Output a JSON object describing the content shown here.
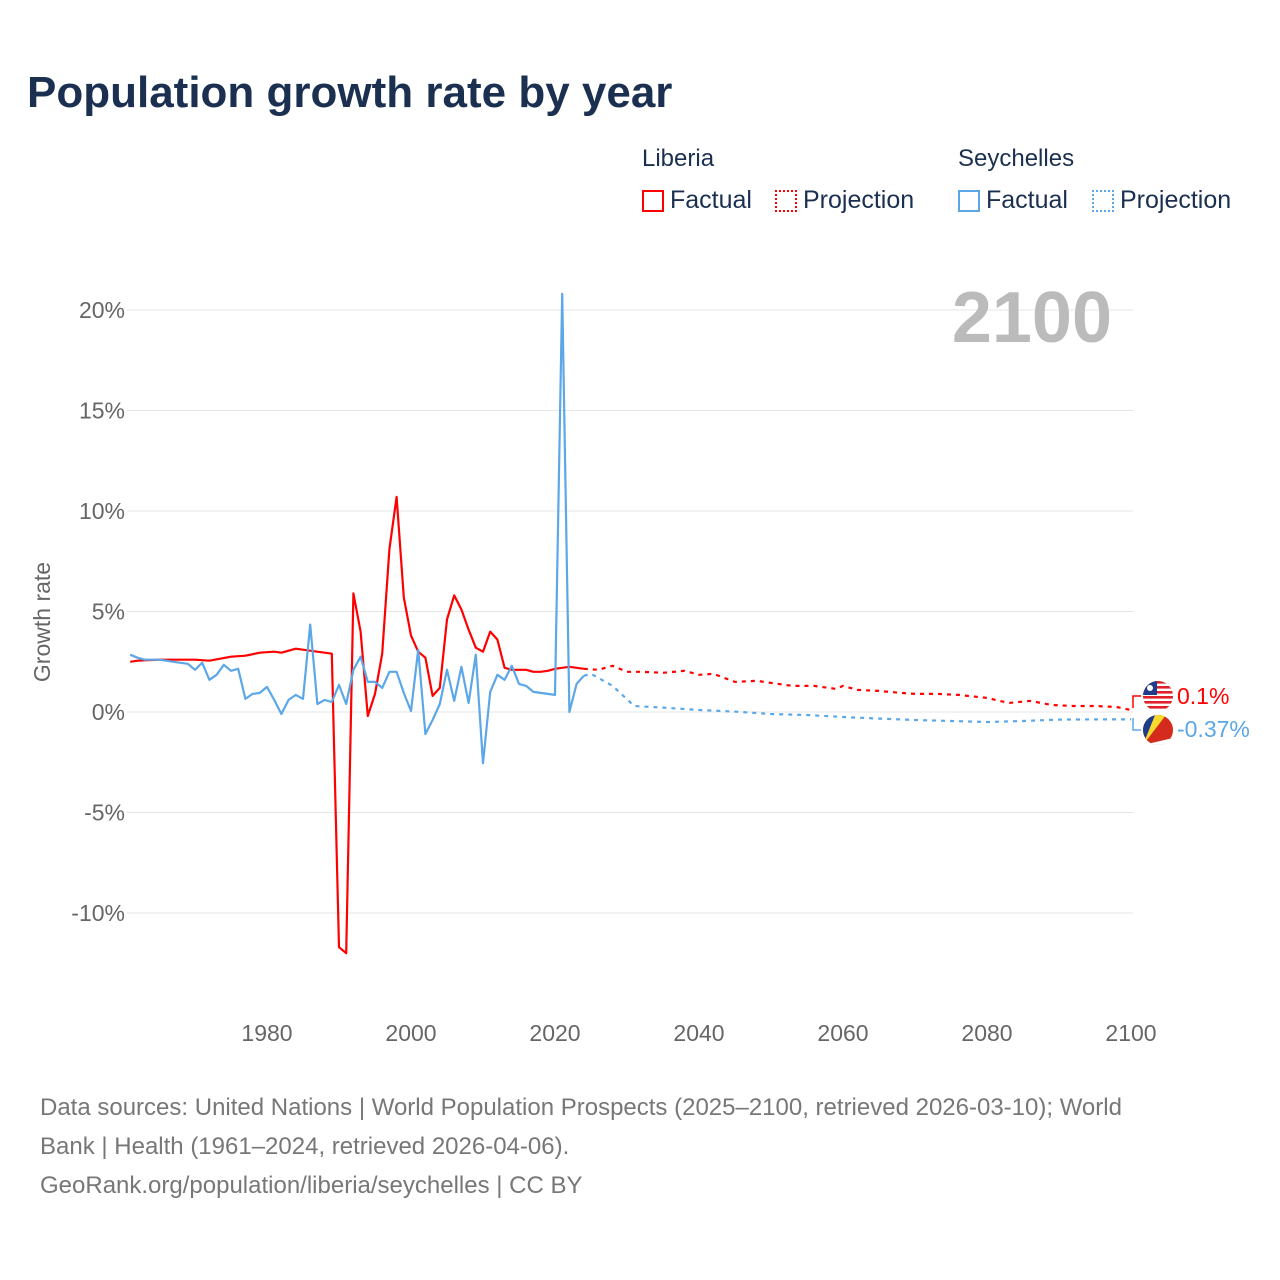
{
  "title": "Population growth rate by year",
  "legend": {
    "groups": [
      {
        "name": "Liberia",
        "color": "#ff0000"
      },
      {
        "name": "Seychelles",
        "color": "#5ba7e8"
      }
    ],
    "factual": "Factual",
    "projection": "Projection"
  },
  "year_label": "2100",
  "footer": {
    "line1": "Data sources: United Nations | World Population Prospects (2025–2100, retrieved 2026-03-10); World",
    "line2": "Bank | Health (1961–2024, retrieved 2026-04-06).",
    "line3": "GeoRank.org/population/liberia/seychelles | CC BY"
  },
  "chart_data": {
    "type": "line",
    "title": "Population growth rate by year",
    "xlabel": "",
    "ylabel": "Growth rate",
    "xlim": [
      1960,
      2100
    ],
    "ylim": [
      -15,
      22
    ],
    "xticks": [
      1980,
      2000,
      2020,
      2040,
      2060,
      2080,
      2100
    ],
    "xtick_labels": [
      "1980",
      "2000",
      "2020",
      "2040",
      "2060",
      "2080",
      "2100"
    ],
    "yticks": [
      20,
      15,
      10,
      5,
      0,
      -5,
      -10
    ],
    "ytick_labels": [
      "20%",
      "15%",
      "10%",
      "5%",
      "0%",
      "-5%",
      "-10%"
    ],
    "grid": true,
    "series": [
      {
        "name": "Liberia",
        "kind": "factual",
        "color": "#ff0000",
        "x": [
          1961,
          1962,
          1965,
          1968,
          1970,
          1972,
          1975,
          1977,
          1979,
          1981,
          1982,
          1984,
          1986,
          1988,
          1989,
          1990,
          1991,
          1992,
          1993,
          1994,
          1995,
          1996,
          1997,
          1998,
          1999,
          2000,
          2001,
          2002,
          2003,
          2004,
          2005,
          2006,
          2007,
          2008,
          2009,
          2010,
          2011,
          2012,
          2013,
          2014,
          2015,
          2016,
          2017,
          2018,
          2019,
          2020,
          2021,
          2022,
          2023,
          2024
        ],
        "y": [
          2.5,
          2.55,
          2.6,
          2.6,
          2.6,
          2.55,
          2.75,
          2.8,
          2.95,
          3.0,
          2.95,
          3.15,
          3.05,
          2.95,
          2.9,
          -11.7,
          -12.0,
          5.9,
          4.0,
          -0.2,
          0.9,
          2.9,
          8.1,
          10.7,
          5.7,
          3.8,
          3.0,
          2.7,
          0.8,
          1.2,
          4.6,
          5.8,
          5.1,
          4.1,
          3.2,
          3.0,
          4.0,
          3.6,
          2.2,
          2.1,
          2.1,
          2.1,
          2.0,
          2.0,
          2.05,
          2.15,
          2.2,
          2.25,
          2.2,
          2.15
        ]
      },
      {
        "name": "Liberia",
        "kind": "projection",
        "color": "#ff0000",
        "x": [
          2024,
          2026,
          2028,
          2030,
          2032,
          2035,
          2038,
          2040,
          2042,
          2045,
          2048,
          2050,
          2053,
          2056,
          2059,
          2060,
          2062,
          2065,
          2068,
          2070,
          2073,
          2076,
          2080,
          2083,
          2086,
          2089,
          2092,
          2095,
          2098,
          2100
        ],
        "y": [
          2.15,
          2.1,
          2.3,
          2.0,
          2.0,
          1.95,
          2.05,
          1.85,
          1.9,
          1.5,
          1.55,
          1.45,
          1.3,
          1.3,
          1.15,
          1.3,
          1.1,
          1.05,
          0.95,
          0.9,
          0.9,
          0.85,
          0.7,
          0.45,
          0.55,
          0.35,
          0.3,
          0.3,
          0.25,
          0.1
        ]
      },
      {
        "name": "Seychelles",
        "kind": "factual",
        "color": "#5ba7e8",
        "x": [
          1961,
          1962,
          1963,
          1964,
          1965,
          1966,
          1967,
          1968,
          1969,
          1970,
          1971,
          1972,
          1973,
          1974,
          1975,
          1976,
          1977,
          1978,
          1979,
          1980,
          1981,
          1982,
          1983,
          1984,
          1985,
          1986,
          1987,
          1988,
          1989,
          1990,
          1991,
          1992,
          1993,
          1994,
          1995,
          1996,
          1997,
          1998,
          1999,
          2000,
          2001,
          2002,
          2003,
          2004,
          2005,
          2006,
          2007,
          2008,
          2009,
          2010,
          2011,
          2012,
          2013,
          2014,
          2015,
          2016,
          2017,
          2018,
          2019,
          2020,
          2021,
          2022,
          2023,
          2024
        ],
        "y": [
          2.85,
          2.7,
          2.6,
          2.6,
          2.6,
          2.55,
          2.5,
          2.45,
          2.4,
          2.1,
          2.45,
          1.6,
          1.85,
          2.35,
          2.05,
          2.15,
          0.65,
          0.9,
          0.95,
          1.25,
          0.6,
          -0.1,
          0.6,
          0.85,
          0.65,
          4.35,
          0.4,
          0.6,
          0.5,
          1.35,
          0.4,
          2.1,
          2.75,
          1.5,
          1.5,
          1.2,
          2.0,
          2.0,
          0.95,
          0.05,
          3.1,
          -1.1,
          -0.4,
          0.4,
          2.1,
          0.55,
          2.25,
          0.45,
          2.85,
          -2.55,
          1.0,
          1.85,
          1.6,
          2.3,
          1.4,
          1.3,
          1.0,
          0.95,
          0.9,
          0.85,
          20.8,
          0.0,
          1.4,
          1.8
        ]
      },
      {
        "name": "Seychelles",
        "kind": "projection",
        "color": "#5ba7e8",
        "x": [
          2024,
          2025,
          2028,
          2031,
          2035,
          2040,
          2045,
          2050,
          2055,
          2060,
          2065,
          2070,
          2075,
          2080,
          2085,
          2090,
          2095,
          2100
        ],
        "y": [
          1.8,
          1.9,
          1.3,
          0.3,
          0.22,
          0.1,
          0.02,
          -0.1,
          -0.15,
          -0.25,
          -0.33,
          -0.4,
          -0.45,
          -0.5,
          -0.45,
          -0.38,
          -0.37,
          -0.37
        ]
      }
    ],
    "end_labels": [
      {
        "name": "Liberia",
        "value": "0.1%"
      },
      {
        "name": "Seychelles",
        "value": "-0.37%"
      }
    ]
  }
}
